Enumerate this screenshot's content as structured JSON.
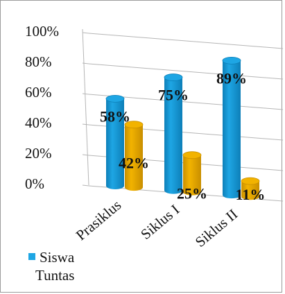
{
  "chart_data": {
    "type": "bar",
    "style": "3d-cylinder",
    "categories": [
      "Prasiklus",
      "Siklus I",
      "Siklus II"
    ],
    "series": [
      {
        "name": "Siswa Tuntas",
        "values": [
          58,
          75,
          89
        ],
        "color": "#1ea6e4"
      },
      {
        "name": "",
        "values": [
          42,
          25,
          11
        ],
        "color": "#f2b300"
      }
    ],
    "data_labels": [
      [
        "58%",
        "75%",
        "89%"
      ],
      [
        "42%",
        "25%",
        "11%"
      ]
    ],
    "y_ticks": [
      "0%",
      "20%",
      "40%",
      "60%",
      "80%",
      "100%"
    ],
    "ylim": [
      0,
      100
    ],
    "grid": true,
    "legend_position": "bottom-left",
    "legend": {
      "line1": "Siswa",
      "line2": "Tuntas"
    }
  }
}
